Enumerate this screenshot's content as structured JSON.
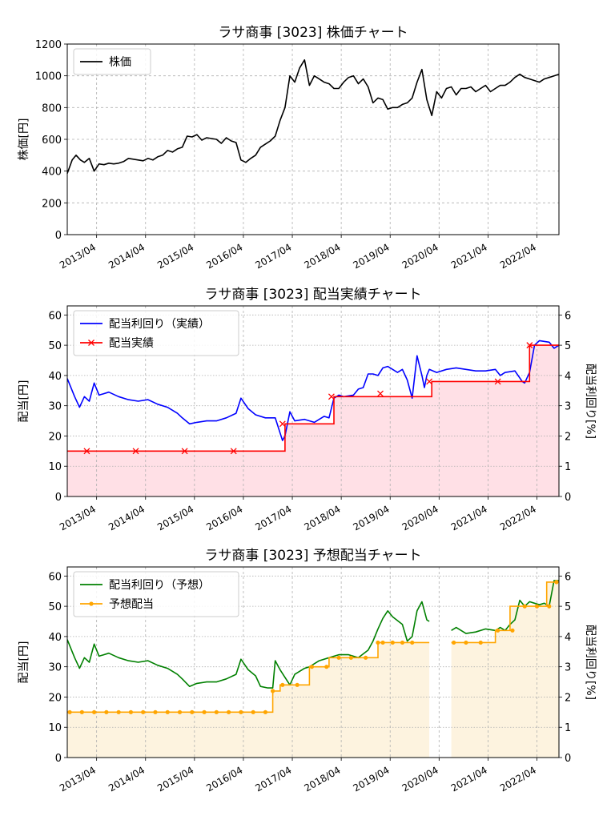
{
  "chart_data": [
    {
      "type": "line",
      "title": "ラサ商事 [3023]  株価チャート",
      "ylabel": "株価[円]",
      "ylim": [
        0,
        1200
      ],
      "yticks": [
        0,
        200,
        400,
        600,
        800,
        1000,
        1200
      ],
      "xlim": [
        2012.65,
        2022.7
      ],
      "xticks": [
        "2013/04",
        "2014/04",
        "2015/04",
        "2016/04",
        "2017/04",
        "2018/04",
        "2019/04",
        "2020/04",
        "2021/04",
        "2022/04"
      ],
      "grid": true,
      "legend": "top-left",
      "series": [
        {
          "name": "株価",
          "color": "#000000",
          "x": [
            2012.65,
            2012.75,
            2012.83,
            2012.92,
            2013.0,
            2013.1,
            2013.2,
            2013.3,
            2013.4,
            2013.5,
            2013.6,
            2013.7,
            2013.8,
            2013.9,
            2014.0,
            2014.1,
            2014.2,
            2014.3,
            2014.4,
            2014.5,
            2014.6,
            2014.7,
            2014.8,
            2014.9,
            2015.0,
            2015.1,
            2015.2,
            2015.3,
            2015.4,
            2015.5,
            2015.6,
            2015.7,
            2015.8,
            2015.9,
            2016.0,
            2016.1,
            2016.2,
            2016.3,
            2016.4,
            2016.5,
            2016.6,
            2016.7,
            2016.8,
            2016.9,
            2017.0,
            2017.1,
            2017.2,
            2017.3,
            2017.4,
            2017.5,
            2017.6,
            2017.7,
            2017.8,
            2017.9,
            2018.0,
            2018.1,
            2018.2,
            2018.3,
            2018.4,
            2018.5,
            2018.6,
            2018.7,
            2018.8,
            2018.9,
            2019.0,
            2019.1,
            2019.2,
            2019.3,
            2019.4,
            2019.5,
            2019.6,
            2019.7,
            2019.8,
            2019.9,
            2020.0,
            2020.1,
            2020.2,
            2020.3,
            2020.4,
            2020.5,
            2020.6,
            2020.7,
            2020.8,
            2020.9,
            2021.0,
            2021.1,
            2021.2,
            2021.3,
            2021.4,
            2021.5,
            2021.6,
            2021.7,
            2021.8,
            2021.9,
            2022.0,
            2022.1,
            2022.2,
            2022.3,
            2022.4,
            2022.5,
            2022.6,
            2022.7
          ],
          "values": [
            385,
            470,
            500,
            470,
            455,
            480,
            400,
            445,
            440,
            450,
            445,
            450,
            460,
            480,
            475,
            470,
            465,
            480,
            470,
            490,
            500,
            530,
            520,
            540,
            550,
            620,
            615,
            630,
            595,
            610,
            605,
            600,
            575,
            610,
            590,
            580,
            470,
            455,
            480,
            500,
            550,
            570,
            590,
            620,
            720,
            800,
            1000,
            960,
            1050,
            1100,
            940,
            1000,
            980,
            960,
            950,
            920,
            920,
            960,
            990,
            1000,
            950,
            980,
            930,
            830,
            860,
            850,
            790,
            800,
            800,
            820,
            830,
            860,
            960,
            1040,
            850,
            750,
            900,
            860,
            920,
            930,
            880,
            920,
            920,
            930,
            900,
            920,
            940,
            900,
            920,
            940,
            940,
            960,
            990,
            1010,
            990,
            980,
            970,
            960,
            980,
            990,
            1000,
            1010
          ]
        }
      ]
    },
    {
      "type": "line",
      "title": "ラサ商事 [3023]  配当実績チャート",
      "ylabel": "配当[円]",
      "y2label": "配当利回り[%]",
      "ylim": [
        0,
        63
      ],
      "yticks": [
        0,
        10,
        20,
        30,
        40,
        50,
        60
      ],
      "y2lim": [
        0,
        6.3
      ],
      "y2ticks": [
        0,
        1,
        2,
        3,
        4,
        5,
        6
      ],
      "xlim": [
        2012.65,
        2022.7
      ],
      "xticks": [
        "2013/04",
        "2014/04",
        "2015/04",
        "2016/04",
        "2017/04",
        "2018/04",
        "2019/04",
        "2020/04",
        "2021/04",
        "2022/04"
      ],
      "grid": true,
      "legend": "top-left",
      "fill_color": "#ffe0e6",
      "series": [
        {
          "name": "配当利回り（実績）",
          "color": "#0000ff",
          "axis": "right",
          "x": [
            2012.65,
            2012.8,
            2012.9,
            2013.0,
            2013.1,
            2013.2,
            2013.3,
            2013.5,
            2013.7,
            2013.9,
            2014.1,
            2014.3,
            2014.5,
            2014.7,
            2014.9,
            2015.0,
            2015.15,
            2015.3,
            2015.5,
            2015.7,
            2015.9,
            2016.1,
            2016.2,
            2016.35,
            2016.5,
            2016.7,
            2016.9,
            2017.0,
            2017.05,
            2017.1,
            2017.2,
            2017.3,
            2017.5,
            2017.7,
            2017.9,
            2018.0,
            2018.1,
            2018.2,
            2018.3,
            2018.5,
            2018.6,
            2018.7,
            2018.8,
            2018.9,
            2019.0,
            2019.1,
            2019.2,
            2019.3,
            2019.4,
            2019.5,
            2019.6,
            2019.7,
            2019.8,
            2019.9,
            2019.95,
            2020.0,
            2020.05,
            2020.2,
            2020.4,
            2020.6,
            2020.8,
            2021.0,
            2021.2,
            2021.4,
            2021.5,
            2021.6,
            2021.8,
            2021.95,
            2022.0,
            2022.1,
            2022.2,
            2022.3,
            2022.5,
            2022.6,
            2022.7
          ],
          "values": [
            3.9,
            3.3,
            2.95,
            3.3,
            3.15,
            3.75,
            3.35,
            3.45,
            3.3,
            3.2,
            3.15,
            3.2,
            3.05,
            2.95,
            2.75,
            2.6,
            2.4,
            2.45,
            2.5,
            2.5,
            2.6,
            2.75,
            3.25,
            2.9,
            2.7,
            2.6,
            2.6,
            2.1,
            1.85,
            2.0,
            2.8,
            2.5,
            2.55,
            2.45,
            2.65,
            2.6,
            3.25,
            3.35,
            3.3,
            3.35,
            3.55,
            3.6,
            4.05,
            4.05,
            4.0,
            4.25,
            4.3,
            4.2,
            4.1,
            4.2,
            3.85,
            3.25,
            4.65,
            4.0,
            3.6,
            4.0,
            4.2,
            4.1,
            4.2,
            4.25,
            4.2,
            4.15,
            4.15,
            4.2,
            4.0,
            4.1,
            4.15,
            3.8,
            3.75,
            4.1,
            5.0,
            5.15,
            5.1,
            4.9,
            5.0
          ]
        },
        {
          "name": "配当実績",
          "color": "#ff0000",
          "axis": "left",
          "step_x": [
            2012.65,
            2017.1,
            2018.1,
            2020.1,
            2022.1,
            2022.7
          ],
          "step_values": [
            15,
            24,
            33,
            38,
            50,
            50
          ],
          "markers_x": [
            2013.05,
            2014.05,
            2015.05,
            2016.05,
            2017.05,
            2018.05,
            2019.05,
            2020.05,
            2021.45,
            2022.1
          ],
          "markers_values": [
            15,
            15,
            15,
            15,
            24,
            33,
            34,
            38,
            38,
            50
          ]
        }
      ]
    },
    {
      "type": "line",
      "title": "ラサ商事 [3023]  予想配当チャート",
      "ylabel": "配当[円]",
      "y2label": "配当利回り[%]",
      "ylim": [
        0,
        63
      ],
      "yticks": [
        0,
        10,
        20,
        30,
        40,
        50,
        60
      ],
      "y2lim": [
        0,
        6.3
      ],
      "y2ticks": [
        0,
        1,
        2,
        3,
        4,
        5,
        6
      ],
      "xlim": [
        2012.65,
        2022.7
      ],
      "xticks": [
        "2013/04",
        "2014/04",
        "2015/04",
        "2016/04",
        "2017/04",
        "2018/04",
        "2019/04",
        "2020/04",
        "2021/04",
        "2022/04"
      ],
      "grid": true,
      "legend": "top-left",
      "fill_color": "#fdf3df",
      "series": [
        {
          "name": "配当利回り（予想）",
          "color": "#008000",
          "axis": "right",
          "segments": [
            {
              "x": [
                2012.65,
                2012.8,
                2012.9,
                2013.0,
                2013.1,
                2013.2,
                2013.3,
                2013.5,
                2013.7,
                2013.9,
                2014.1,
                2014.3,
                2014.5,
                2014.7,
                2014.9,
                2015.0,
                2015.15,
                2015.3,
                2015.5,
                2015.7,
                2015.9,
                2016.1,
                2016.2,
                2016.35,
                2016.5,
                2016.6,
                2016.75,
                2016.85,
                2016.9,
                2017.0,
                2017.1,
                2017.2,
                2017.3,
                2017.5,
                2017.6,
                2017.8,
                2018.0,
                2018.2,
                2018.4,
                2018.6,
                2018.8,
                2018.9,
                2019.0,
                2019.1,
                2019.2,
                2019.3,
                2019.5,
                2019.6,
                2019.7,
                2019.8,
                2019.9,
                2020.0,
                2020.05
              ],
              "values": [
                3.9,
                3.3,
                2.95,
                3.3,
                3.15,
                3.75,
                3.35,
                3.45,
                3.3,
                3.2,
                3.15,
                3.2,
                3.05,
                2.95,
                2.75,
                2.6,
                2.35,
                2.45,
                2.5,
                2.5,
                2.6,
                2.75,
                3.25,
                2.9,
                2.7,
                2.35,
                2.3,
                2.3,
                3.2,
                2.9,
                2.65,
                2.4,
                2.75,
                2.95,
                3.0,
                3.2,
                3.3,
                3.4,
                3.4,
                3.3,
                3.55,
                3.85,
                4.25,
                4.6,
                4.85,
                4.65,
                4.4,
                3.85,
                4.0,
                4.85,
                5.15,
                4.55,
                4.5
              ]
            },
            {
              "x": [
                2020.5,
                2020.6,
                2020.8,
                2021.0,
                2021.2,
                2021.4,
                2021.5,
                2021.6,
                2021.7,
                2021.8,
                2021.9,
                2022.0,
                2022.1,
                2022.2,
                2022.3,
                2022.4,
                2022.5,
                2022.6,
                2022.7
              ],
              "values": [
                4.2,
                4.3,
                4.1,
                4.15,
                4.25,
                4.2,
                4.3,
                4.2,
                4.4,
                4.55,
                5.2,
                5.0,
                5.15,
                5.1,
                5.05,
                5.1,
                5.0,
                5.85,
                5.85
              ]
            }
          ]
        },
        {
          "name": "予想配当",
          "color": "#ffa500",
          "axis": "left",
          "segments": [
            {
              "step_x": [
                2012.65,
                2016.85,
                2017.0,
                2017.3,
                2017.6,
                2018.0,
                2019.0,
                2020.05
              ],
              "step_values": [
                15,
                22,
                24,
                24,
                30,
                33,
                38,
                38
              ]
            },
            {
              "step_x": [
                2020.5,
                2021.4,
                2021.7,
                2022.45,
                2022.7
              ],
              "step_values": [
                38,
                42,
                50,
                58,
                58
              ]
            }
          ],
          "markers_x": [
            2012.7,
            2012.95,
            2013.2,
            2013.45,
            2013.7,
            2013.95,
            2014.2,
            2014.45,
            2014.7,
            2014.95,
            2015.2,
            2015.45,
            2015.7,
            2015.95,
            2016.2,
            2016.45,
            2016.7,
            2016.85,
            2017.05,
            2017.35,
            2017.65,
            2017.95,
            2018.2,
            2018.45,
            2018.75,
            2019.0,
            2019.1,
            2019.3,
            2019.5,
            2019.7,
            2020.55,
            2020.8,
            2021.1,
            2021.45,
            2021.75,
            2022.0,
            2022.25,
            2022.5,
            2022.65
          ],
          "markers_values": [
            15,
            15,
            15,
            15,
            15,
            15,
            15,
            15,
            15,
            15,
            15,
            15,
            15,
            15,
            15,
            15,
            15,
            22,
            24,
            24,
            30,
            30,
            33,
            33,
            33,
            38,
            38,
            38,
            38,
            38,
            38,
            38,
            38,
            42,
            42,
            50,
            50,
            50,
            58
          ]
        }
      ]
    }
  ]
}
